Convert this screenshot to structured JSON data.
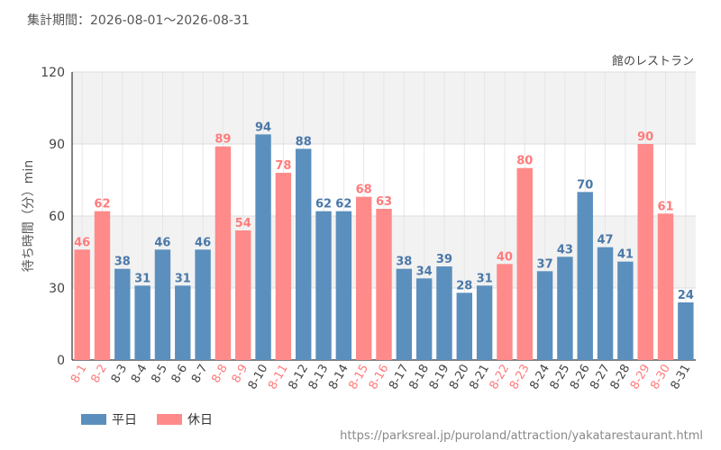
{
  "header": {
    "period_label": "集計期間：2026-08-01～2026-08-31"
  },
  "watermark": "https://parksreal.jp/puroland/attraction/yakatarestaurant.html",
  "chart_data": {
    "type": "bar",
    "title": "館のレストラン",
    "ylabel": "待ち時間（分）min",
    "ylim": [
      0,
      120
    ],
    "yticks": [
      0,
      30,
      60,
      90,
      120
    ],
    "grid": true,
    "legend_position": "bottom-left",
    "categories": [
      "8-1",
      "8-2",
      "8-3",
      "8-4",
      "8-5",
      "8-6",
      "8-7",
      "8-8",
      "8-9",
      "8-10",
      "8-11",
      "8-12",
      "8-13",
      "8-14",
      "8-15",
      "8-16",
      "8-17",
      "8-18",
      "8-19",
      "8-20",
      "8-21",
      "8-22",
      "8-23",
      "8-24",
      "8-25",
      "8-26",
      "8-27",
      "8-28",
      "8-29",
      "8-30",
      "8-31"
    ],
    "values": [
      46,
      62,
      38,
      31,
      46,
      31,
      46,
      89,
      54,
      94,
      78,
      88,
      62,
      62,
      68,
      63,
      38,
      34,
      39,
      28,
      31,
      40,
      80,
      37,
      43,
      70,
      47,
      41,
      90,
      61,
      24
    ],
    "day_type": [
      "holiday",
      "holiday",
      "weekday",
      "weekday",
      "weekday",
      "weekday",
      "weekday",
      "holiday",
      "holiday",
      "weekday",
      "holiday",
      "weekday",
      "weekday",
      "weekday",
      "holiday",
      "holiday",
      "weekday",
      "weekday",
      "weekday",
      "weekday",
      "weekday",
      "holiday",
      "holiday",
      "weekday",
      "weekday",
      "weekday",
      "weekday",
      "weekday",
      "holiday",
      "holiday",
      "weekday"
    ],
    "series": [
      {
        "name": "平日",
        "key": "weekday",
        "color": "#5b8fbd"
      },
      {
        "name": "休日",
        "key": "holiday",
        "color": "#ff8a8a"
      }
    ],
    "colors": {
      "weekday_label": "#4a78a8",
      "holiday_label": "#ff7b7b",
      "axis_text": "#444444"
    }
  }
}
